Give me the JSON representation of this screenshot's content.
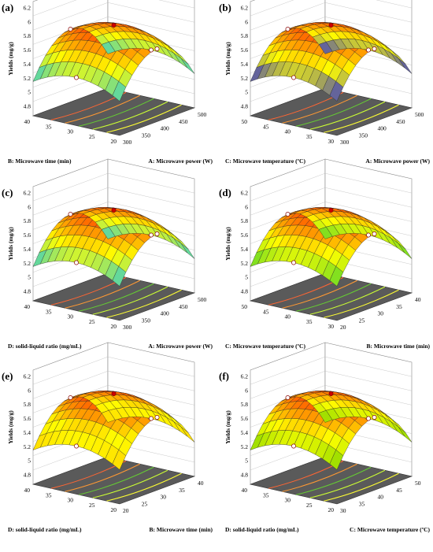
{
  "figure": {
    "panels": [
      {
        "tag": "(a)",
        "zlabel": "Yields (mg/g)",
        "zticks": [
          "6.2",
          "6",
          "5.8",
          "5.6",
          "5.4",
          "5.2",
          "5",
          "4.8"
        ],
        "left_label": "B: Microwave time (min)",
        "left_ticks": [
          "40",
          "35",
          "30",
          "25",
          "20"
        ],
        "right_label": "A: Microwave power (W)",
        "right_ticks": [
          "300",
          "350",
          "400",
          "450",
          "500"
        ],
        "colors": {
          "low": "#00bfff",
          "high": "#ff3300"
        }
      },
      {
        "tag": "(b)",
        "zlabel": "Yields (mg/g)",
        "zticks": [
          "6.2",
          "6",
          "5.8",
          "5.6",
          "5.4",
          "5.2",
          "5",
          "4.8"
        ],
        "left_label": "C: Microwave temperature (ºC)",
        "left_ticks": [
          "50",
          "45",
          "40",
          "35",
          "30"
        ],
        "right_label": "A: Microwave power (W)",
        "right_ticks": [
          "300",
          "350",
          "400",
          "450",
          "500"
        ],
        "colors": {
          "low": "#0000ff",
          "high": "#ff3300"
        }
      },
      {
        "tag": "(c)",
        "zlabel": "Yields (mg/g)",
        "zticks": [
          "6.2",
          "6",
          "5.8",
          "5.6",
          "5.4",
          "5.2",
          "5",
          "4.8"
        ],
        "left_label": "D: solid-liquid ratio (mg/mL)",
        "left_ticks": [
          "40",
          "35",
          "30",
          "25",
          "20"
        ],
        "right_label": "A: Microwave power (W)",
        "right_ticks": [
          "300",
          "350",
          "400",
          "450",
          "500"
        ],
        "colors": {
          "low": "#00bfff",
          "high": "#ff3300"
        }
      },
      {
        "tag": "(d)",
        "zlabel": "Yields (mg/g)",
        "zticks": [
          "6.2",
          "6",
          "5.8",
          "5.6",
          "5.4",
          "5.2",
          "5",
          "4.8"
        ],
        "left_label": "C: Microwave temperature (ºC)",
        "left_ticks": [
          "50",
          "45",
          "40",
          "35",
          "30"
        ],
        "right_label": "B: Microwave time (min)",
        "right_ticks": [
          "20",
          "25",
          "30",
          "35",
          "40"
        ],
        "colors": {
          "low": "#33cc33",
          "high": "#ff3300"
        }
      },
      {
        "tag": "(e)",
        "zlabel": "Yields (mg/g)",
        "zticks": [
          "6.2",
          "6",
          "5.8",
          "5.6",
          "5.4",
          "5.2",
          "5",
          "4.8"
        ],
        "left_label": "D: solid-liquid ratio (mg/mL)",
        "left_ticks": [
          "40",
          "35",
          "30",
          "25",
          "20"
        ],
        "right_label": "B: Microwave time (min)",
        "right_ticks": [
          "20",
          "25",
          "30",
          "35",
          "40"
        ],
        "colors": {
          "low": "#ffcc00",
          "high": "#ff3300"
        }
      },
      {
        "tag": "(f)",
        "zlabel": "Yields (mg/g)",
        "zticks": [
          "6.2",
          "6",
          "5.8",
          "5.6",
          "5.4",
          "5.2",
          "5",
          "4.8"
        ],
        "left_label": "D: solid-liquid ratio (mg/mL)",
        "left_ticks": [
          "40",
          "35",
          "30",
          "25",
          "20"
        ],
        "right_label": "C: Microwave temperature (ºC)",
        "right_ticks": [
          "30",
          "35",
          "40",
          "45",
          "50"
        ],
        "colors": {
          "low": "#66cc00",
          "high": "#ff3300"
        }
      }
    ]
  }
}
